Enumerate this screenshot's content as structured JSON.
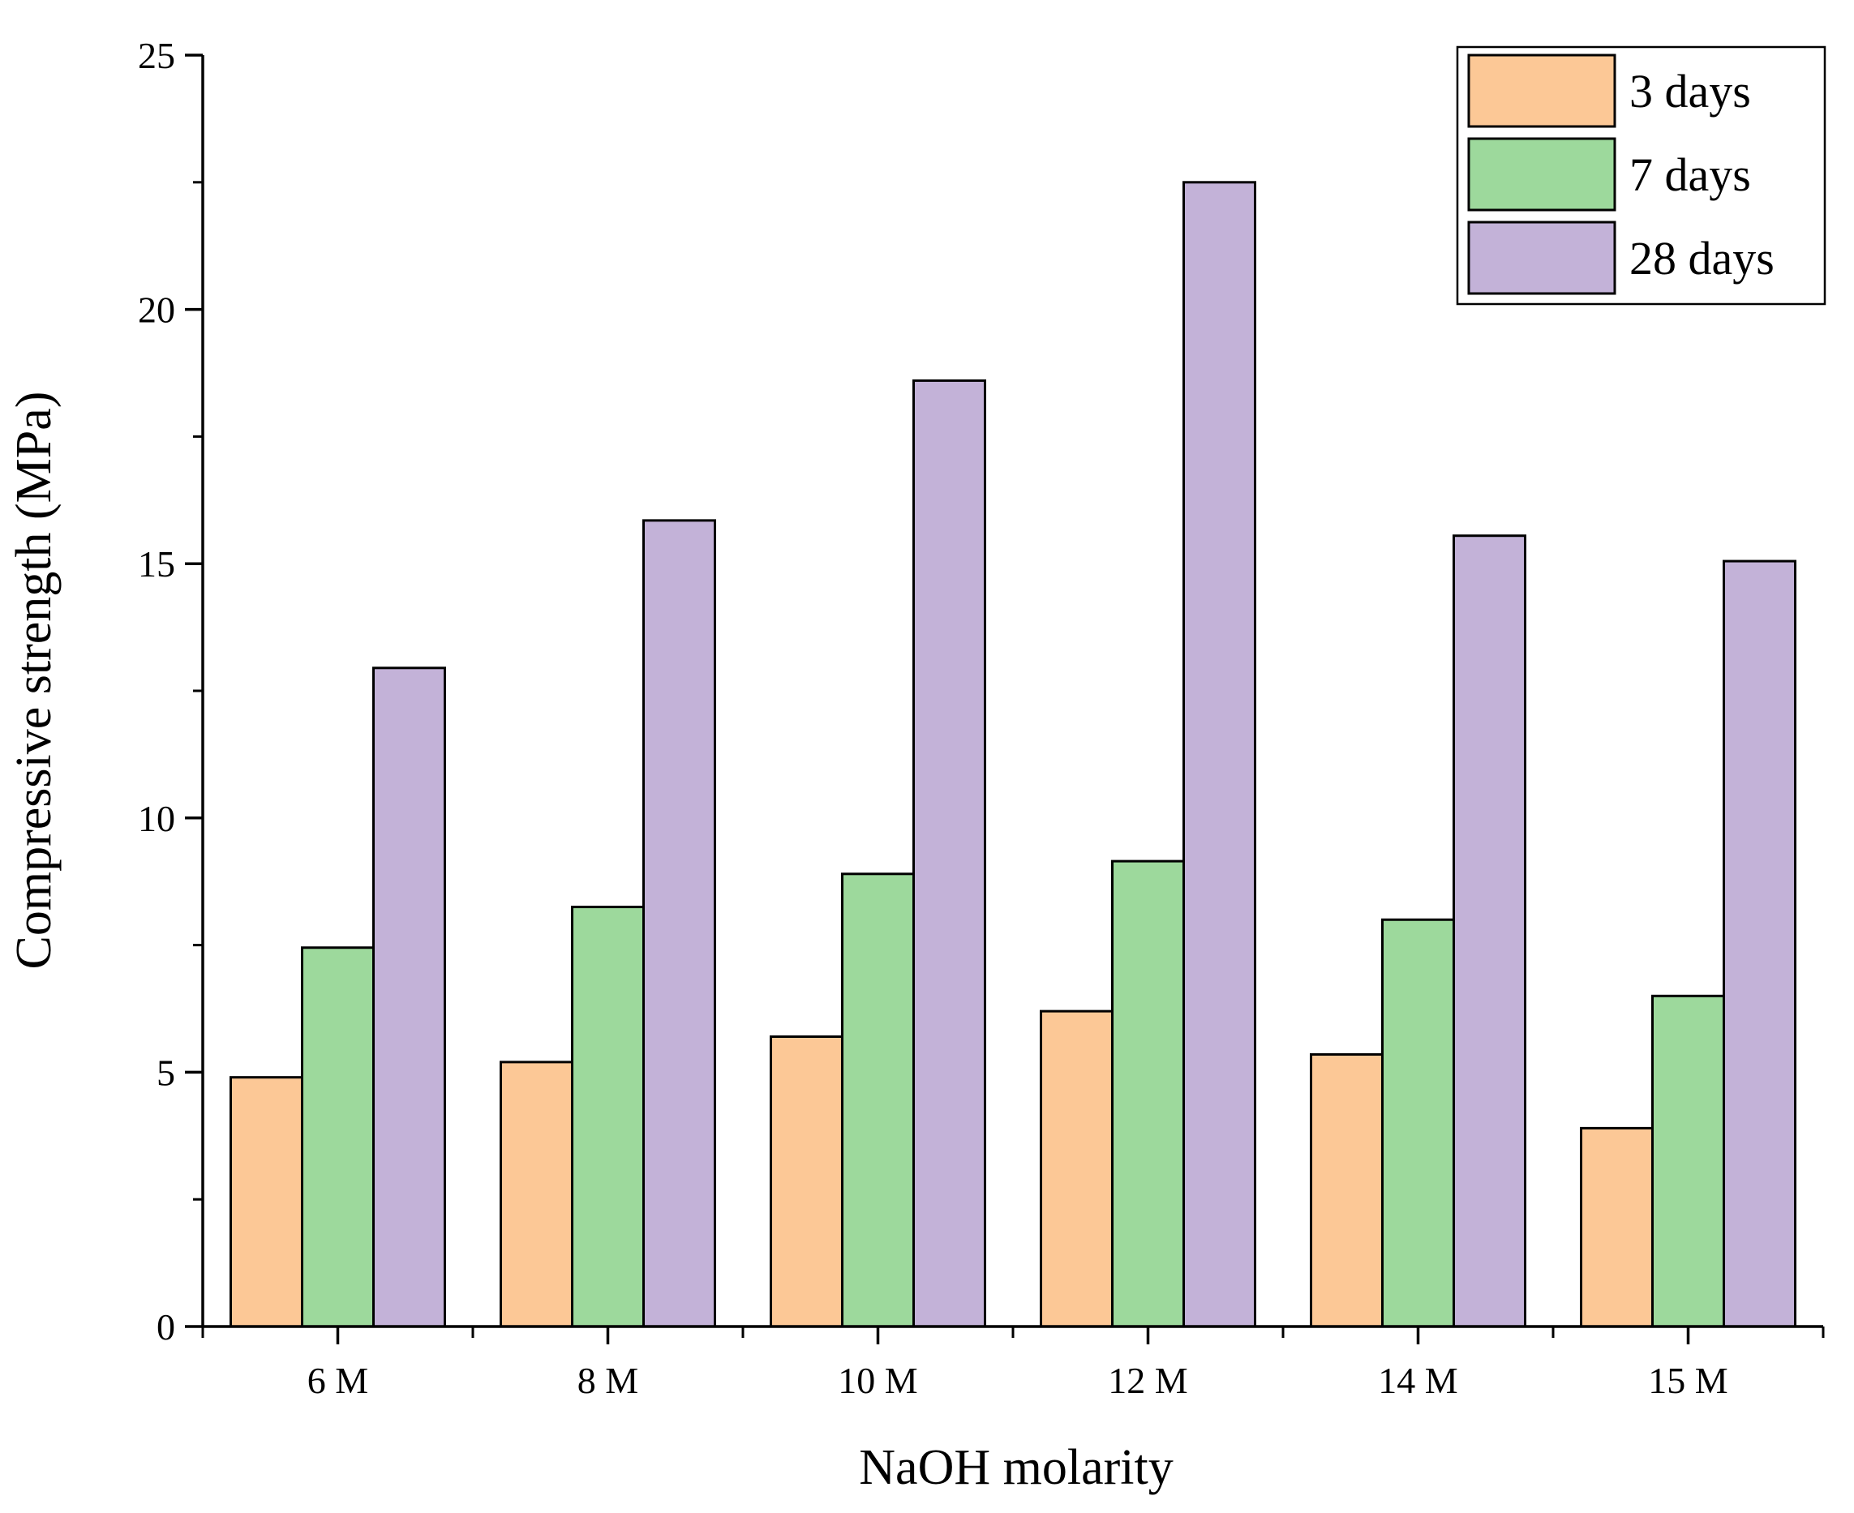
{
  "chart_data": {
    "type": "bar",
    "title": "",
    "xlabel": "NaOH molarity",
    "ylabel": "Compressive strength (MPa)",
    "ylim": [
      0,
      25
    ],
    "yticks": [
      0,
      5,
      10,
      15,
      20,
      25
    ],
    "categories": [
      "6 M",
      "8 M",
      "10 M",
      "12 M",
      "14 M",
      "15 M"
    ],
    "series": [
      {
        "name": "3 days",
        "color": "#FCC896",
        "values": [
          4.9,
          5.2,
          5.7,
          6.2,
          5.35,
          3.9
        ]
      },
      {
        "name": "7 days",
        "color": "#9DD99C",
        "values": [
          7.45,
          8.25,
          8.9,
          9.15,
          8.0,
          6.5
        ]
      },
      {
        "name": "28 days",
        "color": "#C3B2D8",
        "values": [
          12.95,
          15.85,
          18.6,
          22.5,
          15.55,
          15.05
        ]
      }
    ],
    "legend_position": "top-right",
    "grid": false
  }
}
